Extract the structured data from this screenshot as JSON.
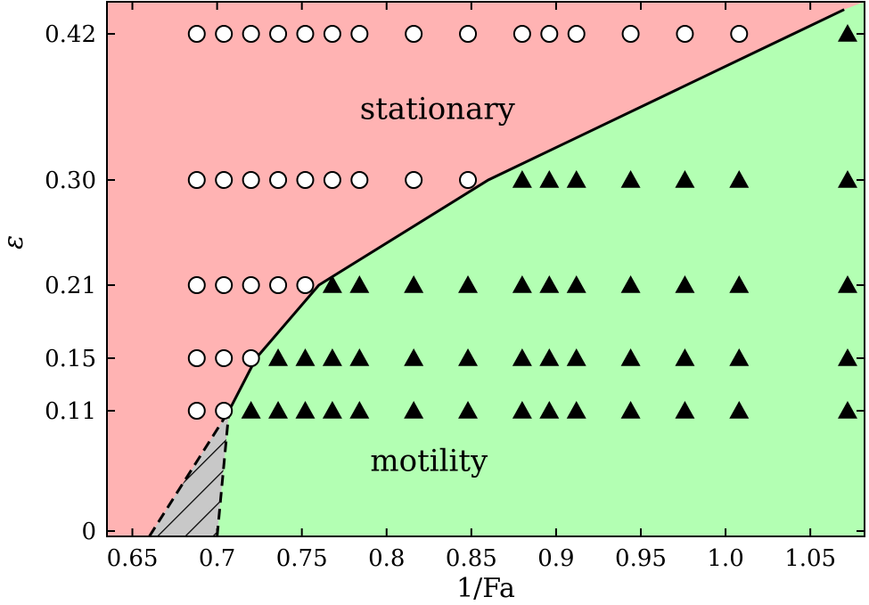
{
  "chart_data": {
    "type": "scatter",
    "title": "",
    "xlabel": "1/Fa",
    "ylabel": "ε",
    "xlim": [
      0.635,
      1.082
    ],
    "x_ticks": [
      0.65,
      0.7,
      0.75,
      0.8,
      0.85,
      0.9,
      0.95,
      1.0,
      1.05
    ],
    "x_tick_labels": [
      "0.65",
      "0.7",
      "0.75",
      "0.8",
      "0.85",
      "0.9",
      "0.95",
      "1.0",
      "1.05"
    ],
    "y_levels": [
      0,
      0.11,
      0.15,
      0.21,
      0.3,
      0.42
    ],
    "y_tick_labels": [
      "0",
      "0.11",
      "0.15",
      "0.21",
      "0.30",
      "0.42"
    ],
    "y_axis_note": "nonlinear spacing: tick labels are evenly interpolated between listed levels",
    "grid": false,
    "colors": {
      "stationary_region": "#ffb3b3",
      "motility_region": "#b3ffb3",
      "hatched_region": "#c8c8c8",
      "boundary": "#000000"
    },
    "regions": [
      {
        "name": "stationary",
        "label": "stationary",
        "label_at": [
          0.83,
          0.35
        ]
      },
      {
        "name": "motility",
        "label": "motility",
        "label_at": [
          0.825,
          0.055
        ]
      },
      {
        "name": "hatched",
        "label": ""
      }
    ],
    "boundary": {
      "solid": [
        [
          0.707,
          0.11
        ],
        [
          0.723,
          0.15
        ],
        [
          0.76,
          0.21
        ],
        [
          0.86,
          0.3
        ],
        [
          1.07,
          0.44
        ]
      ],
      "dashed": [
        [
          0.7,
          0
        ],
        [
          0.707,
          0.11
        ]
      ],
      "hatch_left": [
        [
          0.66,
          0
        ],
        [
          0.707,
          0.11
        ]
      ]
    },
    "series": [
      {
        "name": "stationary",
        "marker": "circle",
        "points": [
          [
            0.688,
            0.42
          ],
          [
            0.704,
            0.42
          ],
          [
            0.72,
            0.42
          ],
          [
            0.736,
            0.42
          ],
          [
            0.752,
            0.42
          ],
          [
            0.768,
            0.42
          ],
          [
            0.784,
            0.42
          ],
          [
            0.816,
            0.42
          ],
          [
            0.848,
            0.42
          ],
          [
            0.88,
            0.42
          ],
          [
            0.896,
            0.42
          ],
          [
            0.912,
            0.42
          ],
          [
            0.944,
            0.42
          ],
          [
            0.976,
            0.42
          ],
          [
            1.008,
            0.42
          ],
          [
            0.688,
            0.3
          ],
          [
            0.704,
            0.3
          ],
          [
            0.72,
            0.3
          ],
          [
            0.736,
            0.3
          ],
          [
            0.752,
            0.3
          ],
          [
            0.768,
            0.3
          ],
          [
            0.784,
            0.3
          ],
          [
            0.816,
            0.3
          ],
          [
            0.848,
            0.3
          ],
          [
            0.688,
            0.21
          ],
          [
            0.704,
            0.21
          ],
          [
            0.72,
            0.21
          ],
          [
            0.736,
            0.21
          ],
          [
            0.752,
            0.21
          ],
          [
            0.688,
            0.15
          ],
          [
            0.704,
            0.15
          ],
          [
            0.72,
            0.15
          ],
          [
            0.688,
            0.11
          ],
          [
            0.704,
            0.11
          ]
        ]
      },
      {
        "name": "motility",
        "marker": "triangle",
        "points": [
          [
            1.072,
            0.42
          ],
          [
            0.88,
            0.3
          ],
          [
            0.896,
            0.3
          ],
          [
            0.912,
            0.3
          ],
          [
            0.944,
            0.3
          ],
          [
            0.976,
            0.3
          ],
          [
            1.008,
            0.3
          ],
          [
            1.072,
            0.3
          ],
          [
            0.768,
            0.21
          ],
          [
            0.784,
            0.21
          ],
          [
            0.816,
            0.21
          ],
          [
            0.848,
            0.21
          ],
          [
            0.88,
            0.21
          ],
          [
            0.896,
            0.21
          ],
          [
            0.912,
            0.21
          ],
          [
            0.944,
            0.21
          ],
          [
            0.976,
            0.21
          ],
          [
            1.008,
            0.21
          ],
          [
            1.072,
            0.21
          ],
          [
            0.736,
            0.15
          ],
          [
            0.752,
            0.15
          ],
          [
            0.768,
            0.15
          ],
          [
            0.784,
            0.15
          ],
          [
            0.816,
            0.15
          ],
          [
            0.848,
            0.15
          ],
          [
            0.88,
            0.15
          ],
          [
            0.896,
            0.15
          ],
          [
            0.912,
            0.15
          ],
          [
            0.944,
            0.15
          ],
          [
            0.976,
            0.15
          ],
          [
            1.008,
            0.15
          ],
          [
            1.072,
            0.15
          ],
          [
            0.72,
            0.11
          ],
          [
            0.736,
            0.11
          ],
          [
            0.752,
            0.11
          ],
          [
            0.768,
            0.11
          ],
          [
            0.784,
            0.11
          ],
          [
            0.816,
            0.11
          ],
          [
            0.848,
            0.11
          ],
          [
            0.88,
            0.11
          ],
          [
            0.896,
            0.11
          ],
          [
            0.912,
            0.11
          ],
          [
            0.944,
            0.11
          ],
          [
            0.976,
            0.11
          ],
          [
            1.008,
            0.11
          ],
          [
            1.072,
            0.11
          ]
        ]
      }
    ]
  }
}
